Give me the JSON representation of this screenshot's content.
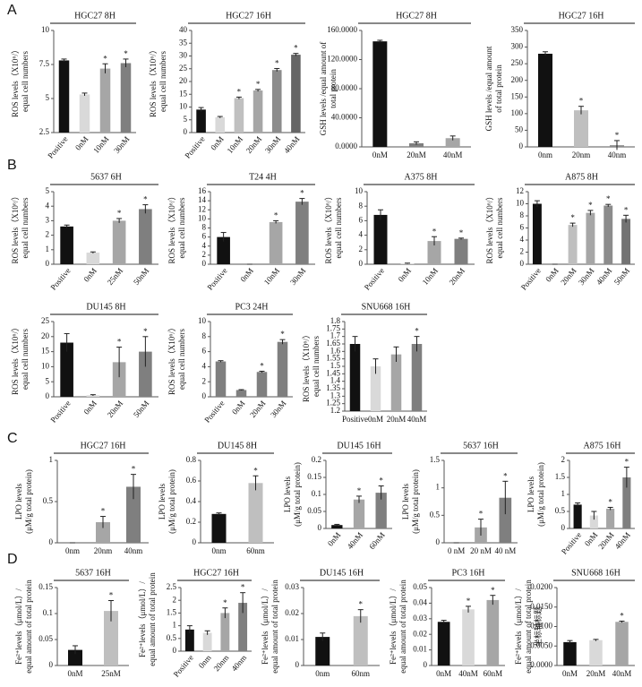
{
  "panel_labels": [
    "A",
    "B",
    "C",
    "D"
  ],
  "chart_data": [
    {
      "type": "bar",
      "title": "HGC27 8H",
      "ylabel": [
        "ROS levels（X10⁶/）",
        "equal cell numbers"
      ],
      "categories": [
        "Positive",
        "0nM",
        "10nM",
        "30nM"
      ],
      "values": [
        7.8,
        5.3,
        7.2,
        7.6
      ],
      "errors": [
        0.1,
        0.1,
        0.35,
        0.3
      ],
      "significance": [
        null,
        null,
        "*",
        "*"
      ],
      "colors": [
        "#111111",
        "#d9d9d9",
        "#a6a6a6",
        "#7f7f7f"
      ],
      "ylim": [
        2.5,
        10
      ],
      "yticks": [
        2.5,
        5,
        7.5,
        10
      ]
    },
    {
      "type": "bar",
      "title": "HGC27 16H",
      "ylabel": [
        "ROS levels（X10⁶/）",
        "equal cell numbers"
      ],
      "categories": [
        "Positive",
        "0nM",
        "10nM",
        "20nM",
        "30nM",
        "40nM"
      ],
      "values": [
        9,
        6,
        13.5,
        16.5,
        24.5,
        30.5
      ],
      "errors": [
        0.8,
        0.3,
        0.4,
        0.4,
        0.6,
        0.5
      ],
      "significance": [
        null,
        null,
        "*",
        "*",
        "*",
        "*"
      ],
      "colors": [
        "#111111",
        "#d9d9d9",
        "#c0c0c0",
        "#a6a6a6",
        "#8c8c8c",
        "#666666"
      ],
      "ylim": [
        0,
        40
      ],
      "yticks": [
        0,
        5,
        10,
        15,
        20,
        25,
        30,
        35,
        40
      ]
    },
    {
      "type": "bar",
      "title": "HGC27 8H",
      "ylabel": [
        "GSH levels /equal amount of",
        "total protein"
      ],
      "categories": [
        "0nM",
        "20nM",
        "40nM"
      ],
      "values": [
        145,
        5,
        12
      ],
      "errors": [
        1.5,
        2,
        3
      ],
      "significance": [
        null,
        null,
        null
      ],
      "colors": [
        "#111111",
        "#7f7f7f",
        "#a6a6a6"
      ],
      "ylim": [
        0,
        160
      ],
      "yticks": [
        {
          "value": 0,
          "label": "0.0000"
        },
        {
          "value": 40,
          "label": "40.0000"
        },
        {
          "value": 80,
          "label": "80.0000"
        },
        {
          "value": 120,
          "label": "120.0000"
        },
        {
          "value": 160,
          "label": "160.0000"
        }
      ]
    },
    {
      "type": "bar",
      "title": "HGC27 16H",
      "ylabel": [
        "GSH levels /equal amount",
        "of total protein"
      ],
      "categories": [
        "0nm",
        "20nm",
        "40nm"
      ],
      "values": [
        280,
        110,
        5
      ],
      "errors": [
        6,
        12,
        14
      ],
      "significance": [
        null,
        "*",
        "*"
      ],
      "colors": [
        "#111111",
        "#bfbfbf",
        "#8c8c8c"
      ],
      "ylim": [
        0,
        350
      ],
      "yticks": [
        0,
        50,
        100,
        150,
        200,
        250,
        300,
        350
      ]
    },
    {
      "type": "bar",
      "title": "5637 6H",
      "ylabel": [
        "ROS levels（X10⁶/）",
        "equal cell numbers"
      ],
      "categories": [
        "Positive",
        "0nM",
        "25nM",
        "50nM"
      ],
      "values": [
        2.6,
        0.8,
        3.0,
        3.8
      ],
      "errors": [
        0.1,
        0.05,
        0.15,
        0.3
      ],
      "significance": [
        null,
        null,
        "*",
        "*"
      ],
      "colors": [
        "#111111",
        "#d9d9d9",
        "#a6a6a6",
        "#7f7f7f"
      ],
      "ylim": [
        0,
        5
      ],
      "yticks": [
        0,
        1,
        2,
        3,
        4,
        5
      ]
    },
    {
      "type": "bar",
      "title": "T24 4H",
      "ylabel": [
        "ROS levels（X10⁶/）",
        "equal cell numbers"
      ],
      "categories": [
        "Positive",
        "0nM",
        "10nM",
        "30nM"
      ],
      "values": [
        6,
        0,
        9.3,
        13.8
      ],
      "errors": [
        1,
        0,
        0.3,
        0.7
      ],
      "significance": [
        null,
        null,
        "*",
        "*"
      ],
      "colors": [
        "#111111",
        "#d9d9d9",
        "#a6a6a6",
        "#7f7f7f"
      ],
      "ylim": [
        0,
        16
      ],
      "yticks": [
        0,
        2,
        4,
        6,
        8,
        10,
        12,
        14,
        16
      ]
    },
    {
      "type": "bar",
      "title": "A375 8H",
      "ylabel": [
        "ROS levels（X10⁶/）",
        "equal cell numbers"
      ],
      "categories": [
        "Positive",
        "0nM",
        "10nM",
        "20nM"
      ],
      "values": [
        6.8,
        0.1,
        3.2,
        3.5
      ],
      "errors": [
        0.7,
        0.05,
        0.6,
        0.1
      ],
      "significance": [
        null,
        null,
        "*",
        "*"
      ],
      "colors": [
        "#111111",
        "#d9d9d9",
        "#a6a6a6",
        "#7f7f7f"
      ],
      "ylim": [
        0,
        10
      ],
      "yticks": [
        0,
        2,
        4,
        6,
        8,
        10
      ]
    },
    {
      "type": "bar",
      "title": "A875 8H",
      "ylabel": [
        "ROS levels（X10⁶/）",
        "equal cell numbers"
      ],
      "categories": [
        "Positive",
        "0nM",
        "20nM",
        "30nM",
        "40nM",
        "50nM"
      ],
      "values": [
        10,
        0,
        6.5,
        8.5,
        9.7,
        7.5
      ],
      "errors": [
        0.5,
        0,
        0.3,
        0.4,
        0.2,
        0.6
      ],
      "significance": [
        null,
        null,
        "*",
        "*",
        "*",
        "*"
      ],
      "colors": [
        "#111111",
        "#d9d9d9",
        "#bfbfbf",
        "#a6a6a6",
        "#8c8c8c",
        "#737373"
      ],
      "ylim": [
        0,
        12
      ],
      "yticks": [
        0,
        2,
        4,
        6,
        8,
        10,
        12
      ]
    },
    {
      "type": "bar",
      "title": "DU145 8H",
      "ylabel": [
        "ROS levels（X10⁶/）",
        "equal cell numbers"
      ],
      "categories": [
        "Positive",
        "0nM",
        "20nM",
        "50nM"
      ],
      "values": [
        18,
        0.5,
        11.5,
        15
      ],
      "errors": [
        3,
        0.2,
        5,
        5
      ],
      "significance": [
        null,
        null,
        "*",
        "*"
      ],
      "colors": [
        "#111111",
        "#d9d9d9",
        "#a6a6a6",
        "#7f7f7f"
      ],
      "ylim": [
        0,
        25
      ],
      "yticks": [
        0,
        5,
        10,
        15,
        20,
        25
      ]
    },
    {
      "type": "bar",
      "title": "PC3 24H",
      "ylabel": [
        "ROS levels（X10⁶/）",
        "equal cell numbers"
      ],
      "categories": [
        "Positive",
        "0nM",
        "20nM",
        "30nM"
      ],
      "values": [
        4.7,
        0.9,
        3.3,
        7.3
      ],
      "errors": [
        0.1,
        0.05,
        0.1,
        0.3
      ],
      "significance": [
        null,
        null,
        "*",
        "*"
      ],
      "colors": [
        "#7f7f7f",
        "#7f7f7f",
        "#7f7f7f",
        "#7f7f7f"
      ],
      "ylim": [
        0,
        10
      ],
      "yticks": [
        0,
        2,
        4,
        6,
        8,
        10
      ]
    },
    {
      "type": "bar",
      "title": "SNU668 16H",
      "ylabel": [
        "ROS levels（X10⁶/）",
        "equal cell numbers"
      ],
      "categories": [
        "Positive",
        "0nM",
        "20nM",
        "40nM"
      ],
      "values": [
        1.65,
        1.5,
        1.58,
        1.65
      ],
      "errors": [
        0.05,
        0.05,
        0.05,
        0.05
      ],
      "significance": [
        null,
        null,
        null,
        "*"
      ],
      "colors": [
        "#111111",
        "#d9d9d9",
        "#a6a6a6",
        "#7f7f7f"
      ],
      "ylim": [
        1.2,
        1.8
      ],
      "yticks": [
        1.2,
        1.25,
        1.3,
        1.35,
        1.4,
        1.45,
        1.5,
        1.55,
        1.6,
        1.65,
        1.7,
        1.75,
        1.8
      ]
    },
    {
      "type": "bar",
      "title": "HGC27 16H",
      "ylabel": [
        "LPO levels",
        "(μM/g total protein)"
      ],
      "categories": [
        "0nm",
        "20nm",
        "40nm"
      ],
      "values": [
        0,
        0.25,
        0.68
      ],
      "errors": [
        0,
        0.07,
        0.15
      ],
      "significance": [
        null,
        "*",
        "*"
      ],
      "colors": [
        "#d9d9d9",
        "#a6a6a6",
        "#7f7f7f"
      ],
      "ylim": [
        0,
        1
      ],
      "yticks": [
        0,
        0.5,
        1
      ]
    },
    {
      "type": "bar",
      "title": "DU145 8H",
      "ylabel": [
        "LPO levels",
        "(μM/g total protein)"
      ],
      "categories": [
        "0nm",
        "60nm"
      ],
      "values": [
        0.28,
        0.58
      ],
      "errors": [
        0.01,
        0.07
      ],
      "significance": [
        null,
        "*"
      ],
      "colors": [
        "#111111",
        "#bfbfbf"
      ],
      "ylim": [
        0,
        0.8
      ],
      "yticks": [
        0,
        0.2,
        0.4,
        0.6,
        0.8
      ]
    },
    {
      "type": "bar",
      "title": "DU145 16H",
      "ylabel": [
        "LPO levels",
        "(μM/g total protein)"
      ],
      "categories": [
        "0nM",
        "40nM",
        "60nM"
      ],
      "values": [
        0.01,
        0.085,
        0.105
      ],
      "errors": [
        0.002,
        0.01,
        0.02
      ],
      "significance": [
        null,
        "*",
        "*"
      ],
      "colors": [
        "#111111",
        "#a6a6a6",
        "#7f7f7f"
      ],
      "ylim": [
        0,
        0.2
      ],
      "yticks": [
        0,
        0.05,
        0.1,
        0.15,
        0.2
      ]
    },
    {
      "type": "bar",
      "title": "5637 16H",
      "ylabel": [
        "LPO levels",
        "(μM/g total protein)"
      ],
      "categories": [
        "0 nM",
        "20 nM",
        "40 nM"
      ],
      "values": [
        0,
        0.28,
        0.82
      ],
      "errors": [
        0,
        0.15,
        0.3
      ],
      "significance": [
        null,
        "*",
        "*"
      ],
      "colors": [
        "#d9d9d9",
        "#a6a6a6",
        "#7f7f7f"
      ],
      "ylim": [
        0,
        1.5
      ],
      "yticks": [
        0,
        0.5,
        1,
        1.5
      ]
    },
    {
      "type": "bar",
      "title": "A875 16H",
      "ylabel": [
        "LPO levels",
        "(μM/g total protein)"
      ],
      "categories": [
        "Positive",
        "0nM",
        "20nM",
        "40nM"
      ],
      "values": [
        0.7,
        0.38,
        0.58,
        1.5
      ],
      "errors": [
        0.05,
        0.12,
        0.04,
        0.3
      ],
      "significance": [
        null,
        null,
        "*",
        "*"
      ],
      "colors": [
        "#111111",
        "#d9d9d9",
        "#a6a6a6",
        "#7f7f7f"
      ],
      "ylim": [
        0,
        2
      ],
      "yticks": [
        0,
        0.5,
        1,
        1.5,
        2
      ]
    },
    {
      "type": "bar",
      "title": "5637 16H",
      "ylabel": [
        "Fe²⁺levels（μmol/L）/",
        "equal amount of total protein"
      ],
      "categories": [
        "0nM",
        "25nM"
      ],
      "values": [
        0.03,
        0.105
      ],
      "errors": [
        0.008,
        0.02
      ],
      "significance": [
        null,
        "*"
      ],
      "colors": [
        "#111111",
        "#bfbfbf"
      ],
      "ylim": [
        0,
        0.15
      ],
      "yticks": [
        0,
        0.05,
        0.1,
        0.15
      ]
    },
    {
      "type": "bar",
      "title": "HGC27 16H",
      "ylabel": [
        "Fe²⁺levels（μmol/L）/",
        "equal amount of total protein"
      ],
      "categories": [
        "Positive",
        "0nm",
        "20nm",
        "40nm"
      ],
      "values": [
        0.85,
        0.72,
        1.5,
        1.9
      ],
      "errors": [
        0.15,
        0.08,
        0.2,
        0.4
      ],
      "significance": [
        null,
        null,
        "*",
        "*"
      ],
      "colors": [
        "#111111",
        "#d9d9d9",
        "#a6a6a6",
        "#7f7f7f"
      ],
      "ylim": [
        0,
        2.5
      ],
      "yticks": [
        0,
        0.5,
        1,
        1.5,
        2,
        2.5
      ]
    },
    {
      "type": "bar",
      "title": "DU145 16H",
      "ylabel": [
        "Fe²⁺levels（μmol/L）/",
        "equal amount of total protein"
      ],
      "categories": [
        "0nm",
        "60nm"
      ],
      "values": [
        0.011,
        0.019
      ],
      "errors": [
        0.0015,
        0.0025
      ],
      "significance": [
        null,
        "*"
      ],
      "colors": [
        "#111111",
        "#bfbfbf"
      ],
      "ylim": [
        0,
        0.03
      ],
      "yticks": [
        0,
        0.01,
        0.02,
        0.03
      ]
    },
    {
      "type": "bar",
      "title": "PC3 16H",
      "ylabel": [
        "Fe²⁺levels（μmol/L）/",
        "equal amount of total protein"
      ],
      "categories": [
        "0nM",
        "40nM",
        "60nM"
      ],
      "values": [
        0.028,
        0.036,
        0.042
      ],
      "errors": [
        0.001,
        0.002,
        0.003
      ],
      "significance": [
        null,
        "*",
        "*"
      ],
      "colors": [
        "#111111",
        "#d9d9d9",
        "#a6a6a6"
      ],
      "ylim": [
        0,
        0.05
      ],
      "yticks": [
        0,
        0.01,
        0.02,
        0.03,
        0.04,
        0.05
      ]
    },
    {
      "type": "bar",
      "title": "SNU668 16H",
      "ylabel": [
        "Fe²⁺levels（μmol/L）/",
        "equal amount of total protein"
      ],
      "axis_note": "坐标轴标题",
      "categories": [
        "0nM",
        "20nM",
        "40nM"
      ],
      "values": [
        0.006,
        0.0065,
        0.0112
      ],
      "errors": [
        0.0004,
        0.0002,
        0.0002
      ],
      "significance": [
        null,
        null,
        "*"
      ],
      "colors": [
        "#111111",
        "#d9d9d9",
        "#a6a6a6"
      ],
      "ylim": [
        0,
        0.02
      ],
      "yticks": [
        {
          "value": 0,
          "label": "0.0000"
        },
        {
          "value": 0.005,
          "label": "0.0050"
        },
        {
          "value": 0.01,
          "label": "0.0100"
        },
        {
          "value": 0.015,
          "label": "0.0150"
        },
        {
          "value": 0.02,
          "label": "0.0200"
        }
      ]
    }
  ]
}
